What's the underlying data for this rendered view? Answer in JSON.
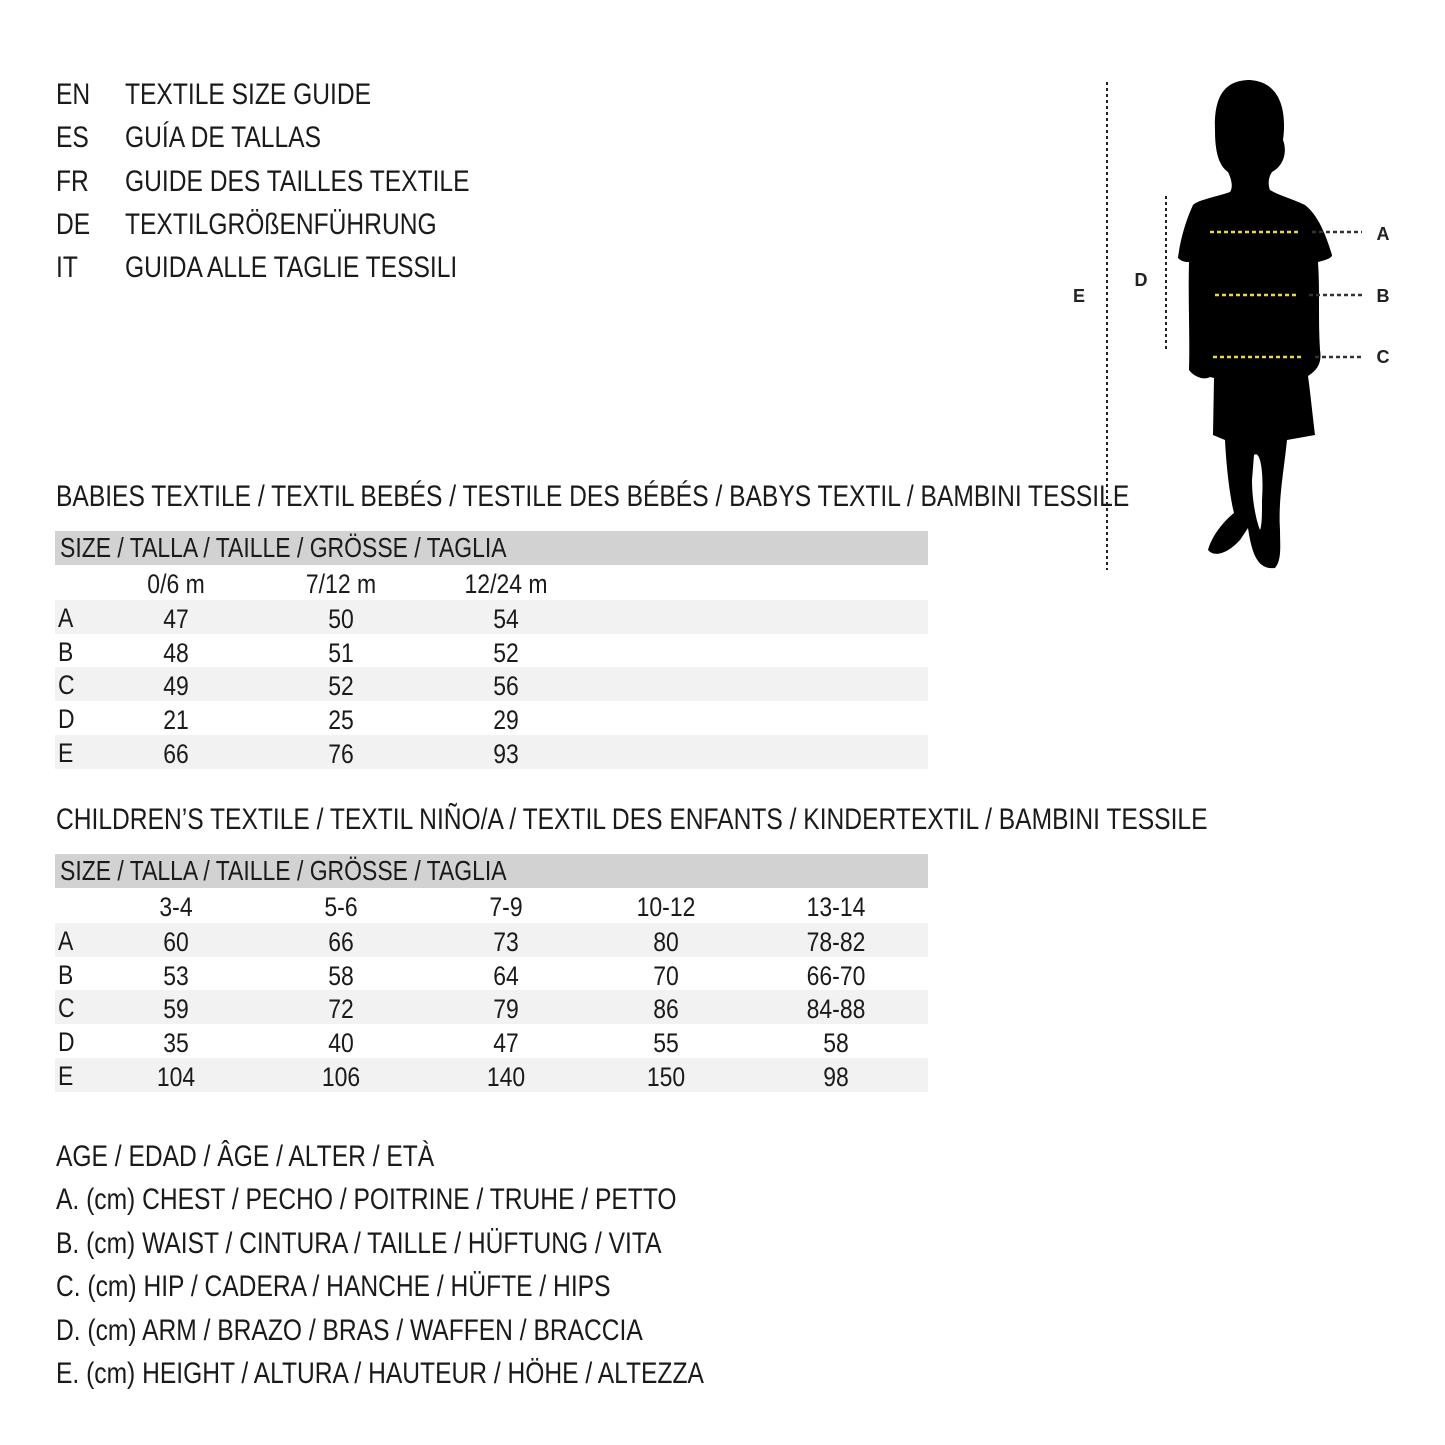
{
  "header": [
    {
      "code": "EN",
      "title": "TEXTILE SIZE GUIDE"
    },
    {
      "code": "ES",
      "title": "GUÍA DE TALLAS"
    },
    {
      "code": "FR",
      "title": "GUIDE DES TAILLES TEXTILE"
    },
    {
      "code": "DE",
      "title": "TEXTILGRÖßENFÜHRUNG"
    },
    {
      "code": "IT",
      "title": "GUIDA ALLE TAGLIE TESSILI"
    }
  ],
  "figure": {
    "labels": {
      "A": "A",
      "B": "B",
      "C": "C",
      "D": "D",
      "E": "E"
    },
    "marker_color": "#e8d84a"
  },
  "babies": {
    "heading": "BABIES TEXTILE / TEXTIL BEBÉS / TESTILE DES BÉBÉS / BABYS TEXTIL / BAMBINI TESSILE",
    "size_label": "SIZE / TALLA / TAILLE / GRÖSSE / TAGLIA",
    "columns": [
      "0/6 m",
      "7/12 m",
      "12/24 m"
    ],
    "rows": [
      {
        "label": "A",
        "values": [
          "47",
          "50",
          "54"
        ]
      },
      {
        "label": "B",
        "values": [
          "48",
          "51",
          "52"
        ]
      },
      {
        "label": "C",
        "values": [
          "49",
          "52",
          "56"
        ]
      },
      {
        "label": "D",
        "values": [
          "21",
          "25",
          "29"
        ]
      },
      {
        "label": "E",
        "values": [
          "66",
          "76",
          "93"
        ]
      }
    ]
  },
  "children": {
    "heading": "CHILDREN’S TEXTILE / TEXTIL NIÑO/A / TEXTIL DES ENFANTS / KINDERTEXTIL / BAMBINI TESSILE",
    "size_label": "SIZE / TALLA / TAILLE / GRÖSSE / TAGLIA",
    "columns": [
      "3-4",
      "5-6",
      "7-9",
      "10-12",
      "13-14"
    ],
    "rows": [
      {
        "label": "A",
        "values": [
          "60",
          "66",
          "73",
          "80",
          "78-82"
        ]
      },
      {
        "label": "B",
        "values": [
          "53",
          "58",
          "64",
          "70",
          "66-70"
        ]
      },
      {
        "label": "C",
        "values": [
          "59",
          "72",
          "79",
          "86",
          "84-88"
        ]
      },
      {
        "label": "D",
        "values": [
          "35",
          "40",
          "47",
          "55",
          "58"
        ]
      },
      {
        "label": "E",
        "values": [
          "104",
          "106",
          "140",
          "150",
          "98"
        ]
      }
    ]
  },
  "legend": [
    "AGE / EDAD / ÂGE / ALTER / ETÀ",
    "A. (cm) CHEST / PECHO / POITRINE / TRUHE / PETTO",
    "B. (cm) WAIST / CINTURA / TAILLE / HÜFTUNG / VITA",
    "C. (cm) HIP / CADERA / HANCHE / HÜFTE / HIPS",
    "D. (cm) ARM / BRAZO / BRAS / WAFFEN / BRACCIA",
    "E. (cm) HEIGHT / ALTURA / HAUTEUR / HÖHE / ALTEZZA"
  ]
}
